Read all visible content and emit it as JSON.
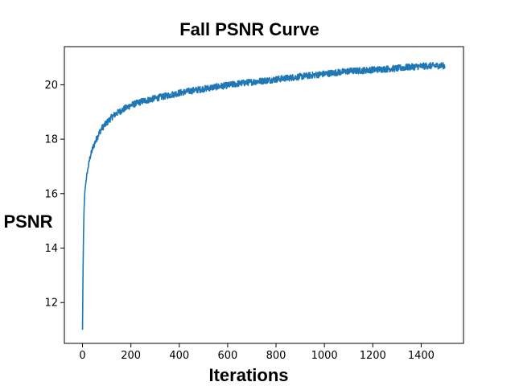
{
  "chart_data": {
    "type": "line",
    "title": "Fall PSNR Curve",
    "xlabel": "Iterations",
    "ylabel": "PSNR",
    "xlim": [
      -75,
      1575
    ],
    "ylim": [
      10.5,
      21.4
    ],
    "xticks": [
      0,
      200,
      400,
      600,
      800,
      1000,
      1200,
      1400
    ],
    "yticks": [
      12,
      14,
      16,
      18,
      20
    ],
    "grid": false,
    "series": [
      {
        "color": "#1f77b4",
        "noise_amplitude": 0.12,
        "x": [
          0,
          2,
          4,
          6,
          8,
          10,
          15,
          20,
          25,
          30,
          40,
          50,
          60,
          70,
          80,
          100,
          120,
          140,
          160,
          180,
          200,
          250,
          300,
          350,
          400,
          450,
          500,
          550,
          600,
          650,
          700,
          750,
          800,
          850,
          900,
          950,
          1000,
          1050,
          1100,
          1150,
          1200,
          1250,
          1300,
          1350,
          1400,
          1450,
          1500
        ],
        "y": [
          11.0,
          13.0,
          14.4,
          15.3,
          15.8,
          16.1,
          16.5,
          16.8,
          17.05,
          17.3,
          17.6,
          17.85,
          18.05,
          18.25,
          18.4,
          18.6,
          18.8,
          18.95,
          19.05,
          19.15,
          19.25,
          19.4,
          19.5,
          19.6,
          19.7,
          19.78,
          19.85,
          19.92,
          19.98,
          20.05,
          20.1,
          20.15,
          20.2,
          20.25,
          20.3,
          20.35,
          20.4,
          20.45,
          20.5,
          20.52,
          20.55,
          20.58,
          20.6,
          20.65,
          20.68,
          20.7,
          20.7
        ]
      }
    ]
  }
}
